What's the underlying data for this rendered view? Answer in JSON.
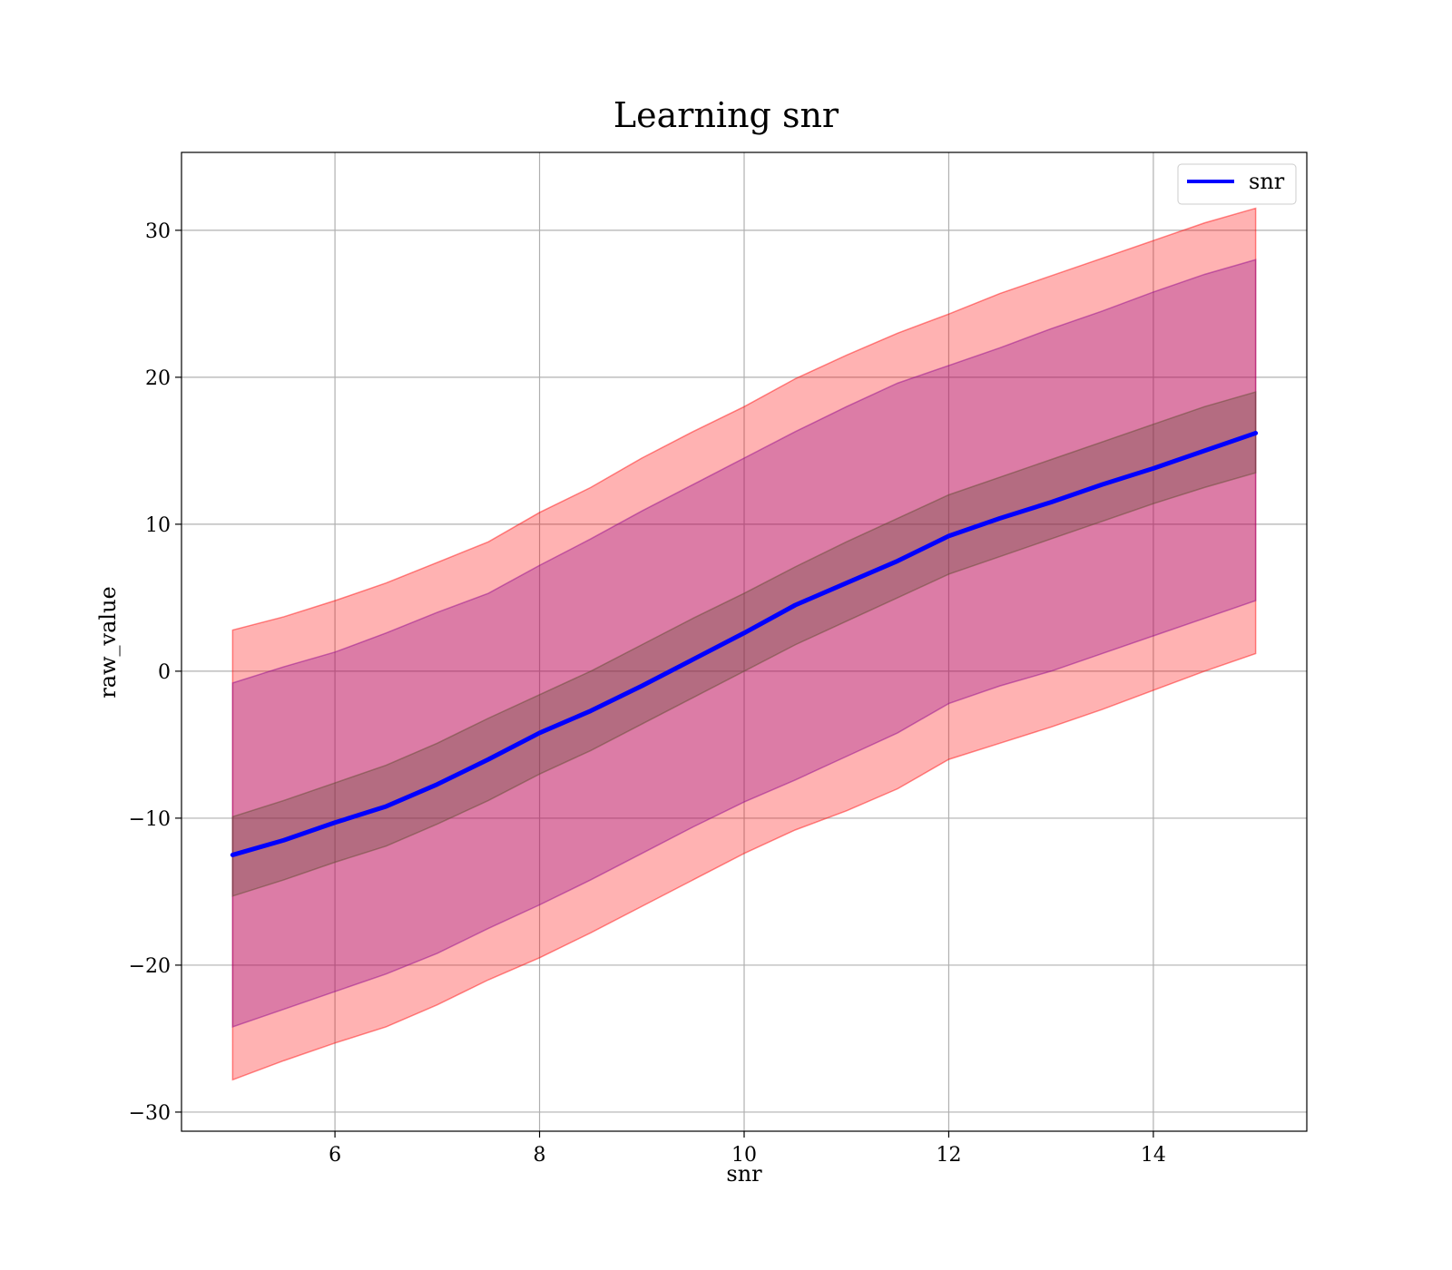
{
  "chart_data": {
    "type": "area",
    "title": "Learning snr",
    "xlabel": "snr",
    "ylabel": "raw_value",
    "xlim": [
      4.5,
      15.5
    ],
    "ylim": [
      -31.3,
      35.3
    ],
    "xticks": [
      6,
      8,
      10,
      12,
      14
    ],
    "yticks": [
      -30,
      -20,
      -10,
      0,
      10,
      20,
      30
    ],
    "grid": true,
    "legend": {
      "position": "top-right",
      "entries": [
        "snr"
      ]
    },
    "x": [
      5,
      5.5,
      6,
      6.5,
      7,
      7.5,
      8,
      8.5,
      9,
      9.5,
      10,
      10.5,
      11,
      11.5,
      12,
      12.5,
      13,
      13.5,
      14,
      14.5,
      15
    ],
    "series": [
      {
        "name": "snr",
        "color": "#0000ff",
        "values": [
          -12.5,
          -11.5,
          -10.3,
          -9.2,
          -7.7,
          -6.0,
          -4.2,
          -2.7,
          -1.0,
          0.8,
          2.6,
          4.5,
          6.0,
          7.5,
          9.2,
          10.4,
          11.5,
          12.7,
          13.8,
          15.0,
          16.2
        ]
      }
    ],
    "bands": [
      {
        "color": "#ff0000",
        "opacity": 0.3,
        "lower": [
          -27.8,
          -26.5,
          -25.3,
          -24.2,
          -22.7,
          -21.0,
          -19.5,
          -17.8,
          -16.0,
          -14.2,
          -12.4,
          -10.8,
          -9.5,
          -8.0,
          -6.0,
          -4.9,
          -3.8,
          -2.6,
          -1.3,
          0.0,
          1.2
        ],
        "upper": [
          2.8,
          3.7,
          4.8,
          6.0,
          7.4,
          8.8,
          10.8,
          12.5,
          14.5,
          16.3,
          18.0,
          19.9,
          21.5,
          23.0,
          24.3,
          25.7,
          26.9,
          28.1,
          29.3,
          30.5,
          31.5
        ]
      },
      {
        "color": "#8b008b",
        "opacity": 0.3,
        "lower": [
          -24.2,
          -23.0,
          -21.8,
          -20.6,
          -19.2,
          -17.5,
          -15.9,
          -14.2,
          -12.4,
          -10.6,
          -8.9,
          -7.4,
          -5.8,
          -4.2,
          -2.2,
          -1.0,
          0.0,
          1.2,
          2.4,
          3.6,
          4.8
        ],
        "upper": [
          -0.8,
          0.3,
          1.3,
          2.6,
          4.0,
          5.3,
          7.2,
          9.0,
          10.9,
          12.7,
          14.5,
          16.3,
          18.0,
          19.6,
          20.8,
          22.0,
          23.3,
          24.5,
          25.8,
          27.0,
          28.0
        ]
      },
      {
        "color": "#5a4a2a",
        "opacity": 0.3,
        "lower": [
          -15.3,
          -14.2,
          -13.0,
          -11.9,
          -10.4,
          -8.8,
          -7.0,
          -5.4,
          -3.6,
          -1.8,
          0.0,
          1.8,
          3.4,
          5.0,
          6.6,
          7.8,
          9.0,
          10.2,
          11.4,
          12.5,
          13.5
        ],
        "upper": [
          -9.9,
          -8.8,
          -7.6,
          -6.4,
          -4.9,
          -3.2,
          -1.6,
          0.0,
          1.8,
          3.6,
          5.3,
          7.1,
          8.8,
          10.4,
          12.0,
          13.2,
          14.4,
          15.6,
          16.8,
          18.0,
          19.0
        ]
      }
    ]
  }
}
